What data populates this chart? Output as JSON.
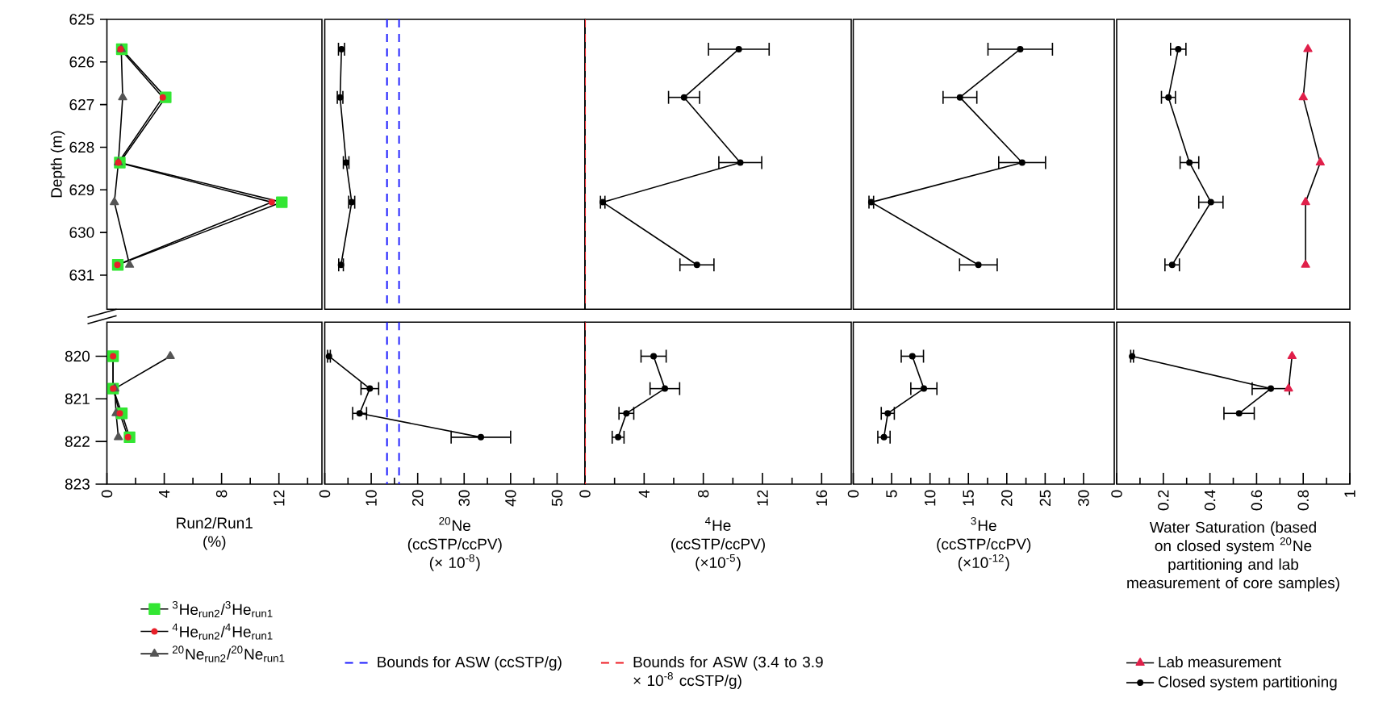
{
  "chart_data": [
    {
      "type": "line",
      "ylabel": "Depth (m)",
      "xlim": [
        0,
        15
      ],
      "ylim": [
        631.8,
        625
      ],
      "yticks": [
        625,
        626,
        627,
        628,
        629,
        630,
        631
      ],
      "tick_labels": "y",
      "grid": false,
      "series": [
        {
          "color": "#33e633",
          "marker": "square",
          "x": [
            1.04,
            4.1,
            0.9,
            12.2,
            0.76
          ],
          "values": [
            625.7,
            626.83,
            628.36,
            629.29,
            630.76
          ]
        },
        {
          "color": "#e8202a",
          "marker": "circle",
          "x": [
            0.95,
            3.9,
            0.8,
            11.5,
            0.73
          ],
          "values": [
            625.7,
            626.83,
            628.36,
            629.29,
            630.76
          ]
        },
        {
          "color": "#555555",
          "marker": "triangle",
          "x": [
            1.0,
            1.1,
            0.8,
            0.52,
            1.58
          ],
          "values": [
            625.7,
            626.83,
            628.36,
            629.29,
            630.76
          ]
        }
      ]
    },
    {
      "type": "line",
      "xlim": [
        0,
        56
      ],
      "ylim": [
        631.8,
        625
      ],
      "tick_labels": false,
      "grid": false,
      "series": [
        {
          "color": "#000000",
          "marker": "circle",
          "x": [
            3.6,
            3.3,
            4.6,
            5.8,
            3.5
          ],
          "values": [
            625.7,
            626.83,
            628.36,
            629.29,
            630.76
          ],
          "xerrors": [
            0.65,
            0.6,
            0.6,
            0.65,
            0.5
          ]
        }
      ],
      "ref_lines": [
        {
          "axis": "x",
          "value": 13.4,
          "color": "#1a1aff",
          "line_style": "dashed"
        },
        {
          "axis": "x",
          "value": 16.0,
          "color": "#1a1aff",
          "line_style": "dashed"
        }
      ]
    },
    {
      "type": "line",
      "xlim": [
        0,
        18
      ],
      "ylim": [
        631.8,
        625
      ],
      "tick_labels": false,
      "grid": false,
      "series": [
        {
          "color": "#000000",
          "marker": "circle",
          "x": [
            10.4,
            6.7,
            10.5,
            1.2,
            7.57
          ],
          "values": [
            625.7,
            626.83,
            628.36,
            629.29,
            630.76
          ],
          "xerrors": [
            2.05,
            1.05,
            1.45,
            0.15,
            1.15
          ]
        }
      ],
      "ref_lines": [
        {
          "axis": "x",
          "value": 0.0034,
          "color": "#ee1c24",
          "line_style": "dashed"
        }
      ]
    },
    {
      "type": "line",
      "xlim": [
        0,
        34
      ],
      "ylim": [
        631.8,
        625
      ],
      "tick_labels": false,
      "grid": false,
      "series": [
        {
          "color": "#000000",
          "marker": "circle",
          "x": [
            21.75,
            13.9,
            22.0,
            2.35,
            16.3
          ],
          "values": [
            625.7,
            626.83,
            628.36,
            629.29,
            630.76
          ],
          "xerrors": [
            4.2,
            2.2,
            3.05,
            0.3,
            2.45
          ]
        }
      ]
    },
    {
      "type": "line",
      "xlim": [
        0,
        1
      ],
      "ylim": [
        631.8,
        625
      ],
      "tick_labels": false,
      "grid": false,
      "series": [
        {
          "color": "#e0204a",
          "marker": "triangle",
          "x": [
            0.82,
            0.8,
            0.873,
            0.81,
            0.81
          ],
          "values": [
            625.7,
            626.83,
            628.36,
            629.29,
            630.76
          ]
        },
        {
          "color": "#000000",
          "marker": "circle",
          "x": [
            0.264,
            0.222,
            0.312,
            0.404,
            0.238
          ],
          "values": [
            625.7,
            626.83,
            628.36,
            629.29,
            630.76
          ],
          "xerrors": [
            0.033,
            0.03,
            0.04,
            0.052,
            0.031
          ]
        }
      ]
    },
    {
      "type": "line",
      "xlabel": "Run2/Run1 (%)",
      "xlim": [
        0,
        15
      ],
      "xticks": [
        0,
        {
          "value": 2,
          "label": null
        },
        4,
        {
          "value": 6,
          "label": null
        },
        8,
        {
          "value": 10,
          "label": null
        },
        12,
        {
          "value": 14,
          "label": null
        }
      ],
      "ylim": [
        823,
        819.2
      ],
      "yticks": [
        820,
        821,
        822,
        823
      ],
      "legend": "bottom",
      "grid": false,
      "series": [
        {
          "name": "$^{3}$He$_{run2}$/$^{3}$He$_{run1}$",
          "color": "#33e633",
          "marker": "square",
          "x": [
            0.43,
            0.43,
            1.04,
            1.58
          ],
          "values": [
            820.0,
            820.76,
            821.34,
            821.9
          ]
        },
        {
          "name": "$^{4}$He$_{run2}$/$^{4}$He$_{run1}$",
          "color": "#e8202a",
          "marker": "circle",
          "x": [
            0.43,
            0.43,
            0.9,
            1.47
          ],
          "values": [
            820.0,
            820.76,
            821.34,
            821.9
          ]
        },
        {
          "name": "$^{20}$Ne$_{run2}$/$^{20}$Ne$_{run1}$",
          "color": "#555555",
          "marker": "triangle",
          "x": [
            4.42,
            0.55,
            0.64,
            0.8
          ],
          "values": [
            820.0,
            820.76,
            821.34,
            821.9
          ]
        }
      ]
    },
    {
      "type": "line",
      "xlabel": "$^{20}$Ne (ccSTP/ccPV) (× 10$^{-8}$)",
      "xlim": [
        0,
        56
      ],
      "xticks": [
        0,
        {
          "value": 5,
          "label": null
        },
        10,
        {
          "value": 15,
          "label": null
        },
        20,
        {
          "value": 25,
          "label": null
        },
        30,
        {
          "value": 35,
          "label": null
        },
        40,
        {
          "value": 45,
          "label": null
        },
        50
      ],
      "ylim": [
        823,
        819.2
      ],
      "tick_labels": "x",
      "grid": false,
      "series": [
        {
          "color": "#000000",
          "marker": "circle",
          "x": [
            0.9,
            9.7,
            7.5,
            33.6
          ],
          "values": [
            820.0,
            820.76,
            821.34,
            821.9
          ],
          "xerrors": [
            0.3,
            1.9,
            1.5,
            6.4
          ]
        }
      ],
      "ref_lines": [
        {
          "axis": "x",
          "value": 13.4,
          "label": "Bounds for ASW (ccSTP/g)",
          "color": "#1a1aff",
          "line_style": "dashed"
        },
        {
          "axis": "x",
          "value": 16.0,
          "color": "#1a1aff",
          "line_style": "dashed"
        }
      ]
    },
    {
      "type": "line",
      "xlabel": "$^{4}$He (ccSTP/ccPV) (×10$^{-5}$)",
      "xlim": [
        0,
        18
      ],
      "xticks": [
        0,
        {
          "value": 2,
          "label": null
        },
        4,
        {
          "value": 6,
          "label": null
        },
        8,
        {
          "value": 10,
          "label": null
        },
        12,
        {
          "value": 14,
          "label": null
        },
        16
      ],
      "ylim": [
        823,
        819.2
      ],
      "tick_labels": "x",
      "grid": false,
      "series": [
        {
          "color": "#000000",
          "marker": "circle",
          "x": [
            4.64,
            5.4,
            2.8,
            2.24
          ],
          "values": [
            820.0,
            820.76,
            821.34,
            821.9
          ],
          "xerrors": [
            0.85,
            1.0,
            0.5,
            0.4
          ]
        }
      ],
      "ref_lines": [
        {
          "axis": "x",
          "value": 0.0034,
          "label": "Bounds for ASW (3.4 to 3.9 × 10$^{-8}$ ccSTP/g)",
          "color": "#ee1c24",
          "line_style": "dashed"
        }
      ]
    },
    {
      "type": "line",
      "xlabel": "$^{3}$He (ccSTP/ccPV) (×10$^{-12}$)",
      "xlim": [
        0,
        34
      ],
      "xticks": [
        0,
        {
          "value": 2.5,
          "label": null
        },
        5,
        {
          "value": 7.5,
          "label": null
        },
        10,
        {
          "value": 12.5,
          "label": null
        },
        15,
        {
          "value": 17.5,
          "label": null
        },
        20,
        {
          "value": 22.5,
          "label": null
        },
        25,
        {
          "value": 27.5,
          "label": null
        },
        30
      ],
      "ylim": [
        823,
        819.2
      ],
      "tick_labels": "x",
      "grid": false,
      "series": [
        {
          "color": "#000000",
          "marker": "circle",
          "x": [
            7.7,
            9.2,
            4.5,
            4.0
          ],
          "values": [
            820.0,
            820.76,
            821.34,
            821.9
          ],
          "xerrors": [
            1.45,
            1.7,
            0.85,
            0.8
          ]
        }
      ]
    },
    {
      "type": "line",
      "xlabel": "Water Saturation (based on closed system $^{20}$Ne partitioning and lab measurement of core samples)",
      "xlim": [
        0,
        1
      ],
      "xticks": [
        0,
        {
          "value": 0.1,
          "label": null
        },
        0.2,
        {
          "value": 0.3,
          "label": null
        },
        0.4,
        {
          "value": 0.5,
          "label": null
        },
        0.6,
        {
          "value": 0.7,
          "label": null
        },
        0.8,
        {
          "value": 0.9,
          "label": null
        },
        1
      ],
      "ylim": [
        823,
        819.2
      ],
      "tick_labels": "x",
      "legend": "bottom",
      "grid": false,
      "series": [
        {
          "name": "Lab measurement",
          "color": "#e0204a",
          "marker": "triangle",
          "x": [
            0.752,
            0.737
          ],
          "values": [
            820.0,
            820.76
          ]
        },
        {
          "name": "Closed system partitioning",
          "color": "#000000",
          "marker": "circle",
          "x": [
            0.066,
            0.661,
            0.525
          ],
          "values": [
            820.0,
            820.76,
            821.34
          ],
          "xerrors": [
            0.006,
            0.08,
            0.065
          ]
        }
      ]
    }
  ]
}
